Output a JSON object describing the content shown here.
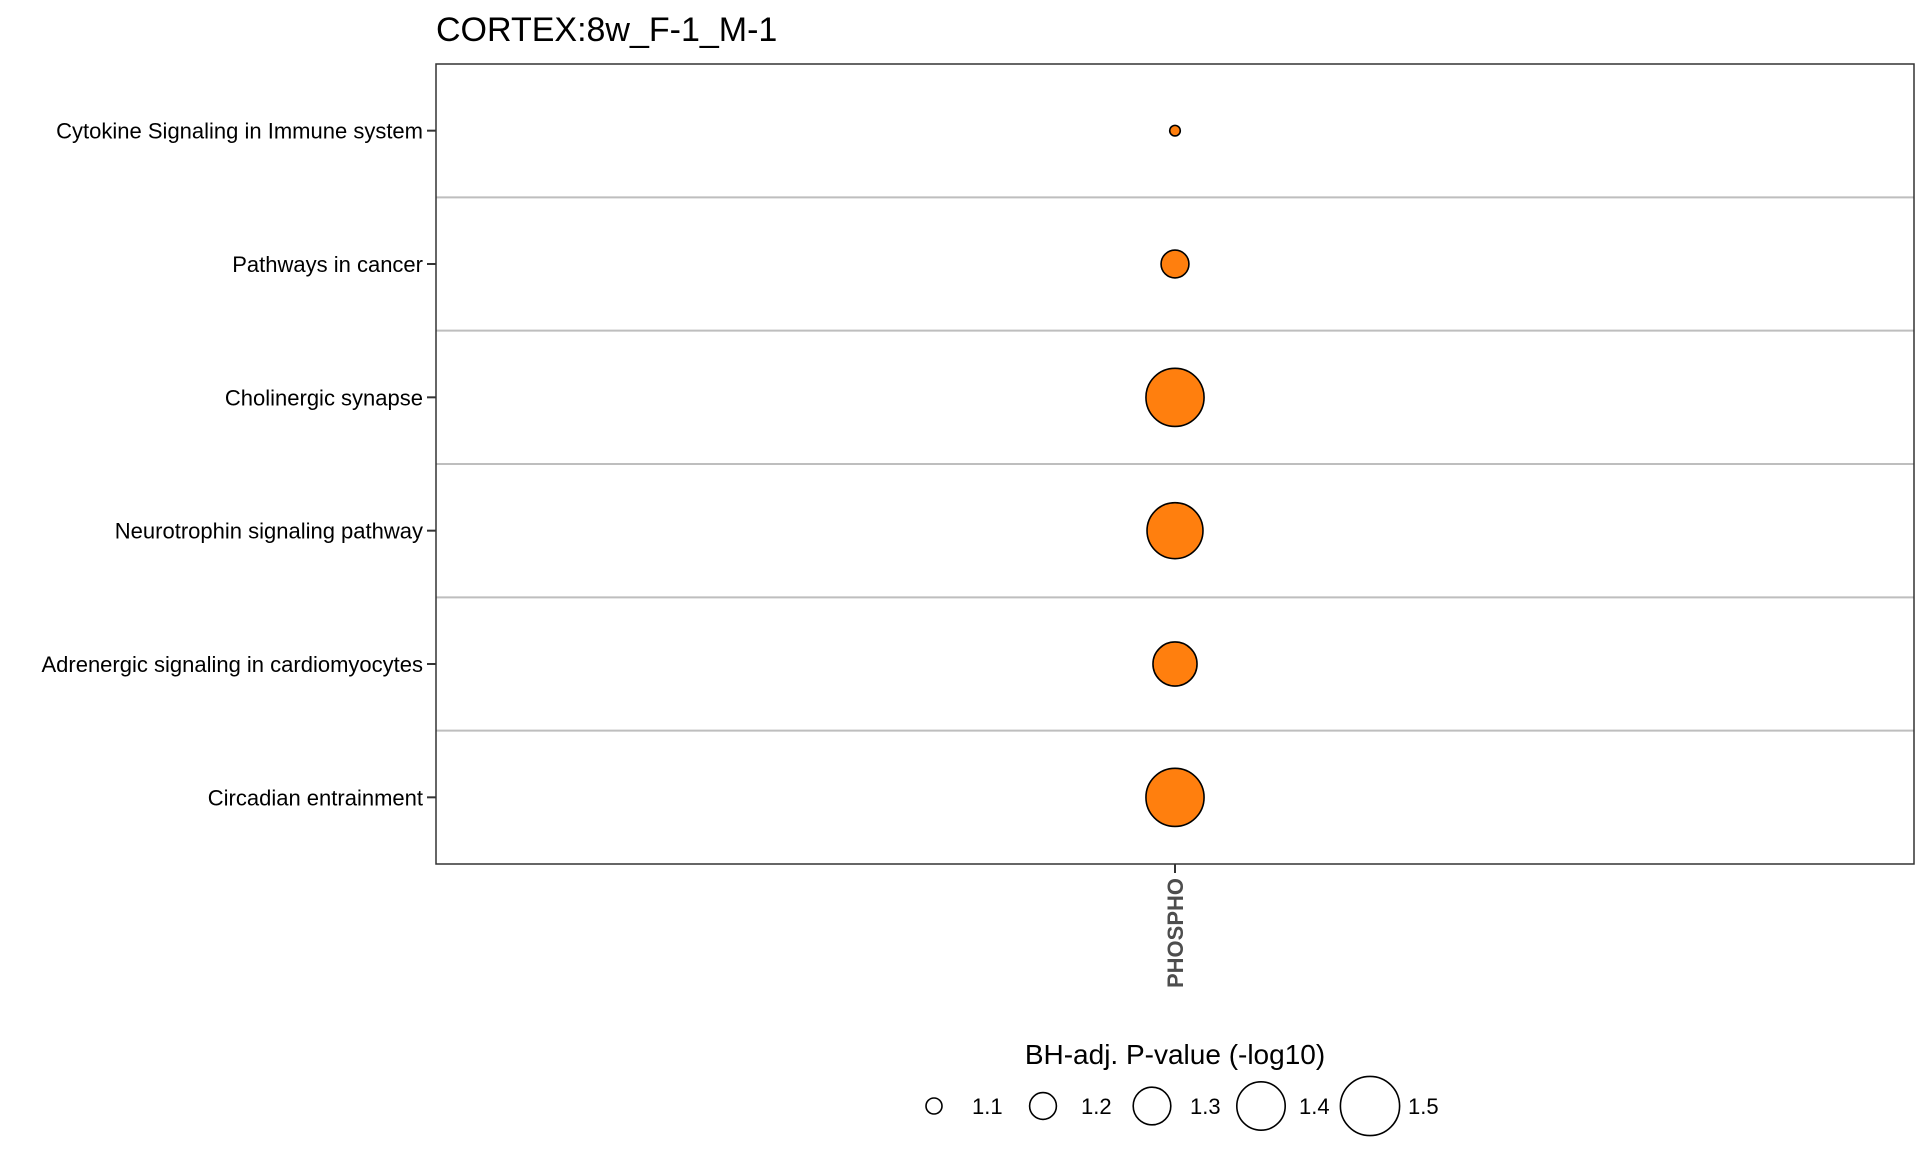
{
  "chart_data": {
    "type": "scatter",
    "title": "CORTEX:8w_F-1_M-1",
    "xlabel": "",
    "ylabel": "",
    "x_categories": [
      "PHOSPHO"
    ],
    "y_categories": [
      "Cytokine Signaling in Immune system",
      "Pathways in cancer",
      "Cholinergic synapse",
      "Neurotrophin signaling pathway",
      "Adrenergic signaling in cardiomyocytes",
      "Circadian entrainment"
    ],
    "points": [
      {
        "x": "PHOSPHO",
        "y": "Cytokine Signaling in Immune system",
        "size": 1.05
      },
      {
        "x": "PHOSPHO",
        "y": "Pathways in cancer",
        "size": 1.21
      },
      {
        "x": "PHOSPHO",
        "y": "Cholinergic synapse",
        "size": 1.49
      },
      {
        "x": "PHOSPHO",
        "y": "Neurotrophin signaling pathway",
        "size": 1.47
      },
      {
        "x": "PHOSPHO",
        "y": "Adrenergic signaling in cardiomyocytes",
        "size": 1.36
      },
      {
        "x": "PHOSPHO",
        "y": "Circadian entrainment",
        "size": 1.49
      }
    ],
    "point_color": "#FF7F0E",
    "point_outline": "#000000",
    "gridlines": "horizontal",
    "legend": {
      "title": "BH-adj. P-value (-log10)",
      "position": "bottom",
      "values": [
        1.1,
        1.2,
        1.3,
        1.4,
        1.5
      ],
      "labels": [
        "1.1",
        "1.2",
        "1.3",
        "1.4",
        "1.5"
      ]
    }
  }
}
